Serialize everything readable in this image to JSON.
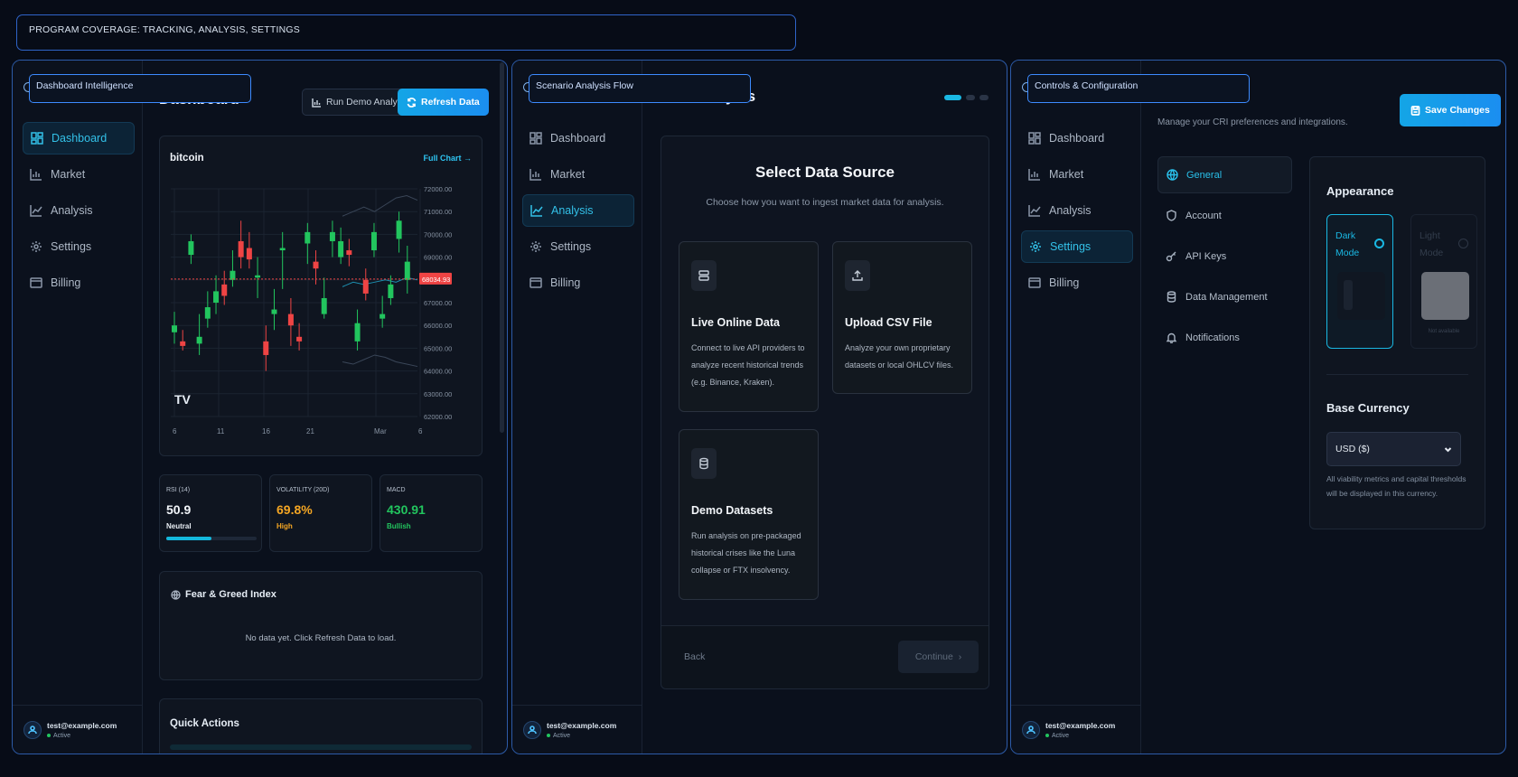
{
  "banner": "PROGRAM COVERAGE: TRACKING, ANALYSIS, SETTINGS",
  "panels": {
    "dashboard": {
      "tag": "Dashboard Intelligence"
    },
    "analysis": {
      "tag": "Scenario Analysis Flow"
    },
    "settings": {
      "tag": "Controls & Configuration"
    }
  },
  "nav": {
    "dashboard": "Dashboard",
    "market": "Market",
    "analysis": "Analysis",
    "settings": "Settings",
    "billing": "Billing"
  },
  "user": {
    "email": "test@example.com",
    "status": "Active"
  },
  "dashboard": {
    "title": "Dashboard",
    "run_demo": "Run Demo Analysis",
    "refresh": "Refresh Data",
    "chart": {
      "title": "bitcoin",
      "full_chart": "Full Chart",
      "price_label": "68034.93",
      "logo": "TV",
      "y_ticks": [
        "72000.00",
        "71000.00",
        "70000.00",
        "69000.00",
        "68000.00",
        "67000.00",
        "66000.00",
        "65000.00",
        "64000.00",
        "63000.00",
        "62000.00"
      ],
      "x_ticks": [
        "6",
        "11",
        "16",
        "21",
        "Mar",
        "6"
      ]
    },
    "metrics": [
      {
        "label": "RSI (14)",
        "value": "50.9",
        "sub": "Neutral",
        "progress": 0.5
      },
      {
        "label": "VOLATILITY (20D)",
        "value": "69.8%",
        "sub": "High"
      },
      {
        "label": "MACD",
        "value": "430.91",
        "sub": "Bullish"
      }
    ],
    "fear": {
      "title": "Fear & Greed Index",
      "empty": "No data yet. Click Refresh Data to load."
    },
    "quick": {
      "title": "Quick Actions"
    }
  },
  "analysis": {
    "title": "Run Analysis",
    "wizard_title": "Select Data Source",
    "wizard_sub": "Choose how you want to ingest market data for analysis.",
    "options": [
      {
        "title": "Live Online Data",
        "desc": "Connect to live API providers to analyze recent historical trends (e.g. Binance, Kraken)."
      },
      {
        "title": "Upload CSV File",
        "desc": "Analyze your own proprietary datasets or local OHLCV files."
      },
      {
        "title": "Demo Datasets",
        "desc": "Run analysis on pre-packaged historical crises like the Luna collapse or FTX insolvency."
      }
    ],
    "back": "Back",
    "continue": "Continue"
  },
  "settings": {
    "subtitle": "Manage your CRI preferences and integrations.",
    "save": "Save Changes",
    "sections": [
      "General",
      "Account",
      "API Keys",
      "Data Management",
      "Notifications"
    ],
    "appearance": "Appearance",
    "dark_mode": "Dark Mode",
    "light_mode": "Light Mode",
    "not_available": "Not available",
    "base_currency": "Base Currency",
    "currency_value": "USD ($)",
    "currency_hint": "All viability metrics and capital thresholds will be displayed in this currency."
  },
  "colors": {
    "accent": "#1ab8e3",
    "up": "#22c55e",
    "down": "#ef4444",
    "warn": "#f5a623",
    "price_tag": "#ef4444"
  },
  "chart_data": {
    "type": "candlestick",
    "title": "bitcoin",
    "ylim": [
      62000,
      72000
    ],
    "x_ticks": [
      "6",
      "11",
      "16",
      "21",
      "Mar",
      "6"
    ],
    "current_price": 68034.93,
    "candles": [
      {
        "o": 65700,
        "c": 66000,
        "h": 66600,
        "l": 65200
      },
      {
        "o": 65300,
        "c": 65100,
        "h": 65800,
        "l": 64900
      },
      {
        "o": 69100,
        "c": 69700,
        "h": 70000,
        "l": 68700
      },
      {
        "o": 65200,
        "c": 65500,
        "h": 66500,
        "l": 64700
      },
      {
        "o": 66300,
        "c": 66800,
        "h": 67500,
        "l": 65900
      },
      {
        "o": 67000,
        "c": 67500,
        "h": 68200,
        "l": 66500
      },
      {
        "o": 67800,
        "c": 67300,
        "h": 68400,
        "l": 66900
      },
      {
        "o": 68000,
        "c": 68400,
        "h": 69300,
        "l": 67700
      },
      {
        "o": 69700,
        "c": 69000,
        "h": 70600,
        "l": 68500
      },
      {
        "o": 69400,
        "c": 68900,
        "h": 70100,
        "l": 68500
      },
      {
        "o": 68100,
        "c": 68200,
        "h": 69000,
        "l": 67200
      },
      {
        "o": 65300,
        "c": 64700,
        "h": 66000,
        "l": 64000
      },
      {
        "o": 66500,
        "c": 66700,
        "h": 67600,
        "l": 65800
      },
      {
        "o": 69300,
        "c": 69400,
        "h": 70100,
        "l": 67600
      },
      {
        "o": 66500,
        "c": 66000,
        "h": 67200,
        "l": 65100
      },
      {
        "o": 65500,
        "c": 65300,
        "h": 66100,
        "l": 64900
      },
      {
        "o": 69600,
        "c": 70100,
        "h": 70500,
        "l": 68700
      },
      {
        "o": 68800,
        "c": 68500,
        "h": 69300,
        "l": 67800
      },
      {
        "o": 66500,
        "c": 67200,
        "h": 68100,
        "l": 66300
      },
      {
        "o": 69700,
        "c": 70100,
        "h": 70600,
        "l": 69000
      },
      {
        "o": 69000,
        "c": 69700,
        "h": 70300,
        "l": 68700
      },
      {
        "o": 69300,
        "c": 69100,
        "h": 69800,
        "l": 68600
      },
      {
        "o": 65300,
        "c": 66100,
        "h": 66700,
        "l": 64900
      },
      {
        "o": 68000,
        "c": 67400,
        "h": 68500,
        "l": 67100
      },
      {
        "o": 69300,
        "c": 70100,
        "h": 70500,
        "l": 69000
      },
      {
        "o": 66300,
        "c": 66500,
        "h": 67300,
        "l": 65900
      },
      {
        "o": 67200,
        "c": 67800,
        "h": 68200,
        "l": 66900
      },
      {
        "o": 69800,
        "c": 70600,
        "h": 71000,
        "l": 69200
      },
      {
        "o": 68000,
        "c": 68800,
        "h": 69500,
        "l": 67400
      }
    ],
    "overlay_upper": [
      70800,
      71000,
      71200,
      71000,
      71300,
      71600,
      71700,
      71500
    ],
    "overlay_lower": [
      64400,
      64300,
      64500,
      64700,
      64600,
      64400,
      64300,
      64200
    ],
    "overlay_mid": [
      67700,
      67900,
      67800,
      67900,
      68000,
      67900,
      68100,
      68000
    ]
  }
}
